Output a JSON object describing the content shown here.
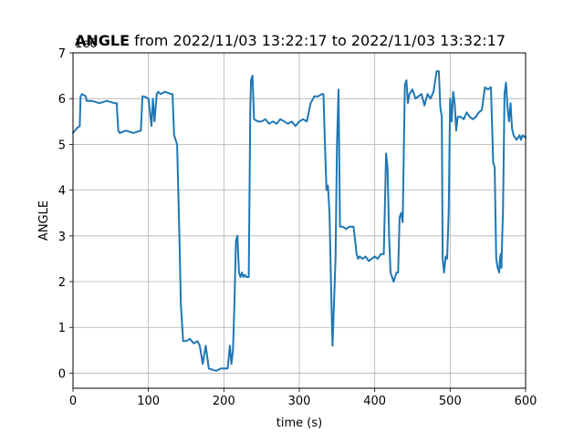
{
  "chart_data": {
    "type": "line",
    "title_bold": "ANGLE",
    "title_rest": " from 2022/11/03 13:22:17 to 2022/11/03 13:32:17",
    "xlabel": "time (s)",
    "ylabel": "ANGLE",
    "y_offset_label": "1e6",
    "xlim": [
      0,
      600
    ],
    "ylim": [
      -0.33,
      7
    ],
    "xticks": [
      0,
      100,
      200,
      300,
      400,
      500,
      600
    ],
    "yticks": [
      0,
      1,
      2,
      3,
      4,
      5,
      6,
      7
    ],
    "grid": true,
    "line_color": "#1f77b4",
    "series": [
      {
        "x": [
          0,
          5,
          9,
          10,
          12,
          17,
          18,
          25,
          35,
          45,
          55,
          58,
          60,
          62,
          70,
          80,
          90,
          92,
          94,
          100,
          104,
          106,
          108,
          111,
          113,
          116,
          122,
          130,
          132,
          134,
          138,
          141,
          143,
          146,
          150,
          155,
          160,
          165,
          168,
          172,
          176,
          180,
          190,
          196,
          200,
          205,
          208,
          210,
          212,
          214,
          216,
          218,
          220,
          222,
          224,
          226,
          228,
          230,
          233,
          235,
          236,
          238,
          240,
          245,
          250,
          255,
          260,
          265,
          270,
          275,
          280,
          285,
          290,
          295,
          300,
          305,
          310,
          315,
          320,
          325,
          330,
          332,
          334,
          336,
          338,
          340,
          342,
          344,
          346,
          348,
          350,
          352,
          354,
          358,
          362,
          366,
          372,
          376,
          378,
          380,
          384,
          388,
          392,
          396,
          400,
          404,
          408,
          412,
          415,
          417,
          419,
          421,
          423,
          425,
          427,
          429,
          431,
          433,
          435,
          437,
          440,
          442,
          444,
          446,
          450,
          454,
          458,
          462,
          466,
          470,
          474,
          478,
          482,
          485,
          487,
          489,
          490,
          492,
          494,
          496,
          498,
          500,
          502,
          504,
          506,
          508,
          510,
          514,
          518,
          522,
          526,
          530,
          534,
          538,
          542,
          546,
          550,
          554,
          557,
          559,
          561,
          563,
          565,
          566,
          567,
          568,
          569,
          570,
          572,
          574,
          576,
          578,
          580,
          582,
          584,
          586,
          588,
          590,
          592,
          594,
          596,
          600
        ],
        "y": [
          5.25,
          5.35,
          5.4,
          6.05,
          6.1,
          6.05,
          5.95,
          5.95,
          5.9,
          5.95,
          5.9,
          5.9,
          5.3,
          5.25,
          5.3,
          5.25,
          5.3,
          6.05,
          6.05,
          6.0,
          5.4,
          6.0,
          5.5,
          6.1,
          6.15,
          6.1,
          6.15,
          6.1,
          6.1,
          5.2,
          5.0,
          3.0,
          1.5,
          0.7,
          0.7,
          0.75,
          0.65,
          0.7,
          0.6,
          0.2,
          0.6,
          0.1,
          0.05,
          0.1,
          0.1,
          0.1,
          0.6,
          0.2,
          0.5,
          1.5,
          2.9,
          3.0,
          2.2,
          2.1,
          2.2,
          2.1,
          2.15,
          2.1,
          2.1,
          5.8,
          6.4,
          6.5,
          5.55,
          5.5,
          5.5,
          5.55,
          5.45,
          5.5,
          5.45,
          5.55,
          5.5,
          5.45,
          5.5,
          5.4,
          5.5,
          5.55,
          5.5,
          5.9,
          6.05,
          6.05,
          6.1,
          6.1,
          5.0,
          4.0,
          4.1,
          3.5,
          2.0,
          0.6,
          1.5,
          2.5,
          5.0,
          6.2,
          3.2,
          3.2,
          3.15,
          3.2,
          3.2,
          2.6,
          2.5,
          2.55,
          2.5,
          2.55,
          2.45,
          2.5,
          2.55,
          2.5,
          2.6,
          2.6,
          4.8,
          4.5,
          3.0,
          2.2,
          2.1,
          2.0,
          2.1,
          2.2,
          2.2,
          3.4,
          3.5,
          3.3,
          6.3,
          6.4,
          5.9,
          6.1,
          6.2,
          6.0,
          6.05,
          6.1,
          5.85,
          6.1,
          6.0,
          6.15,
          6.6,
          6.6,
          5.8,
          5.6,
          2.5,
          2.2,
          2.55,
          2.5,
          3.5,
          6.0,
          5.5,
          6.15,
          5.9,
          5.3,
          5.6,
          5.6,
          5.55,
          5.7,
          5.6,
          5.55,
          5.6,
          5.7,
          5.75,
          6.25,
          6.2,
          6.25,
          4.6,
          4.5,
          2.5,
          2.3,
          2.2,
          2.5,
          2.6,
          2.3,
          3.0,
          3.5,
          6.1,
          6.35,
          5.8,
          5.5,
          5.9,
          5.35,
          5.2,
          5.15,
          5.1,
          5.15,
          5.2,
          5.1,
          5.2,
          5.15
        ]
      }
    ]
  }
}
